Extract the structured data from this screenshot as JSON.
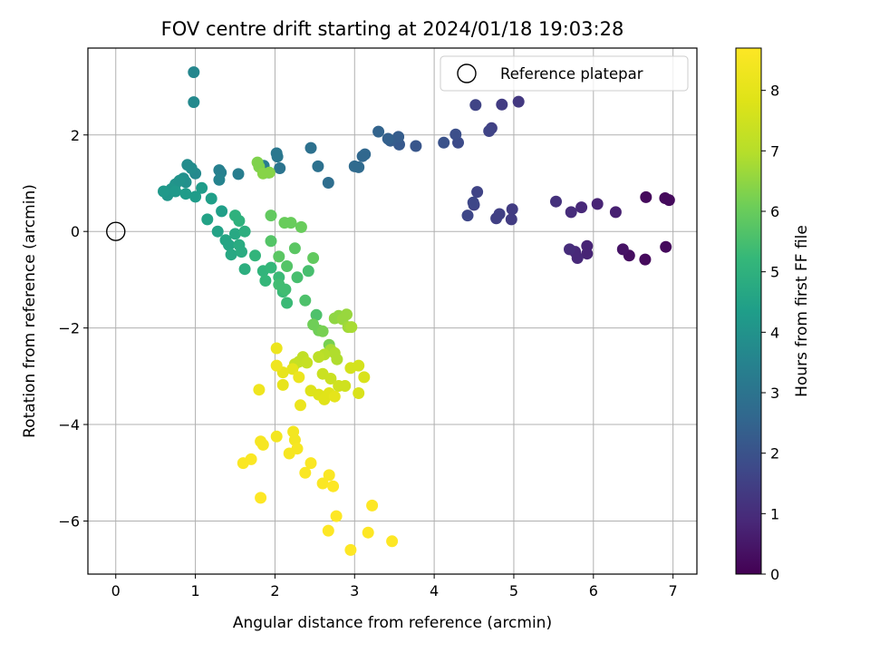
{
  "chart_data": {
    "type": "scatter",
    "title": "FOV centre drift starting at 2024/01/18 19:03:28",
    "xlabel": "Angular distance from reference (arcmin)",
    "ylabel": "Rotation from reference (arcmin)",
    "xlim": [
      -0.35,
      7.3
    ],
    "ylim": [
      -7.1,
      3.8
    ],
    "xticks": [
      0,
      1,
      2,
      3,
      4,
      5,
      6,
      7
    ],
    "yticks": [
      -6,
      -4,
      -2,
      0,
      2
    ],
    "grid": true,
    "legend": {
      "position": "top-right",
      "entries": [
        "Reference platepar"
      ]
    },
    "reference_point": {
      "x": 0,
      "y": 0
    },
    "colormap": "viridis",
    "colorbar": {
      "label": "Hours from first FF file",
      "range": [
        0,
        8.7
      ],
      "ticks": [
        0,
        1,
        2,
        3,
        4,
        5,
        6,
        7,
        8
      ]
    },
    "point_fields": [
      "x",
      "y",
      "hours"
    ],
    "points": [
      [
        6.66,
        0.71,
        0.2
      ],
      [
        6.9,
        0.69,
        0.2
      ],
      [
        6.95,
        0.65,
        0.2
      ],
      [
        6.91,
        -0.32,
        0.2
      ],
      [
        6.65,
        -0.58,
        0.2
      ],
      [
        6.45,
        -0.5,
        0.3
      ],
      [
        6.37,
        -0.37,
        0.4
      ],
      [
        6.28,
        0.4,
        0.7
      ],
      [
        6.05,
        0.57,
        0.8
      ],
      [
        5.92,
        -0.3,
        0.8
      ],
      [
        5.92,
        -0.46,
        0.8
      ],
      [
        5.85,
        0.5,
        0.9
      ],
      [
        5.8,
        -0.55,
        0.9
      ],
      [
        5.77,
        -0.42,
        0.9
      ],
      [
        5.72,
        0.4,
        1.0
      ],
      [
        5.7,
        -0.37,
        1.0
      ],
      [
        5.53,
        0.62,
        1.1
      ],
      [
        5.06,
        2.69,
        1.3
      ],
      [
        4.98,
        0.46,
        1.4
      ],
      [
        4.97,
        0.25,
        1.4
      ],
      [
        4.85,
        2.63,
        1.4
      ],
      [
        4.82,
        0.36,
        1.5
      ],
      [
        4.78,
        0.27,
        1.5
      ],
      [
        4.72,
        2.14,
        1.5
      ],
      [
        4.69,
        2.08,
        1.6
      ],
      [
        4.54,
        0.82,
        1.6
      ],
      [
        4.52,
        2.62,
        1.6
      ],
      [
        4.5,
        0.55,
        1.6
      ],
      [
        4.49,
        0.6,
        1.7
      ],
      [
        4.42,
        0.33,
        1.7
      ],
      [
        4.3,
        1.84,
        1.8
      ],
      [
        4.27,
        2.01,
        1.9
      ],
      [
        4.12,
        1.84,
        2.0
      ],
      [
        3.77,
        1.77,
        2.1
      ],
      [
        3.56,
        1.8,
        2.2
      ],
      [
        3.55,
        1.96,
        2.3
      ],
      [
        3.45,
        1.88,
        2.3
      ],
      [
        3.42,
        1.92,
        2.4
      ],
      [
        3.3,
        2.07,
        2.5
      ],
      [
        3.13,
        1.6,
        2.6
      ],
      [
        3.1,
        1.56,
        2.6
      ],
      [
        3.05,
        1.33,
        2.7
      ],
      [
        3.0,
        1.35,
        2.7
      ],
      [
        2.67,
        1.01,
        2.8
      ],
      [
        2.54,
        1.35,
        2.9
      ],
      [
        2.45,
        1.73,
        2.9
      ],
      [
        2.06,
        1.31,
        3.0
      ],
      [
        2.03,
        1.55,
        3.1
      ],
      [
        2.02,
        1.62,
        3.1
      ],
      [
        1.92,
        1.22,
        3.2
      ],
      [
        1.86,
        1.36,
        3.3
      ],
      [
        1.54,
        1.19,
        3.3
      ],
      [
        1.32,
        1.22,
        3.4
      ],
      [
        1.3,
        1.27,
        3.4
      ],
      [
        1.3,
        1.07,
        3.5
      ],
      [
        0.98,
        3.3,
        3.6
      ],
      [
        0.98,
        2.68,
        3.7
      ],
      [
        1.0,
        1.2,
        3.7
      ],
      [
        0.9,
        1.38,
        3.8
      ],
      [
        0.95,
        1.31,
        3.8
      ],
      [
        0.85,
        1.1,
        3.9
      ],
      [
        0.88,
        1.02,
        3.9
      ],
      [
        0.8,
        1.05,
        4.0
      ],
      [
        0.75,
        0.98,
        4.0
      ],
      [
        0.7,
        0.88,
        4.1
      ],
      [
        0.65,
        0.75,
        4.1
      ],
      [
        0.6,
        0.83,
        4.2
      ],
      [
        0.75,
        0.83,
        4.2
      ],
      [
        0.88,
        0.78,
        4.3
      ],
      [
        1.0,
        0.72,
        4.3
      ],
      [
        1.08,
        0.9,
        4.3
      ],
      [
        1.2,
        0.68,
        4.4
      ],
      [
        1.33,
        0.42,
        4.4
      ],
      [
        1.15,
        0.25,
        4.5
      ],
      [
        1.28,
        0.0,
        4.5
      ],
      [
        1.38,
        -0.18,
        4.6
      ],
      [
        1.42,
        -0.28,
        4.6
      ],
      [
        1.45,
        -0.48,
        4.7
      ],
      [
        1.5,
        -0.05,
        4.7
      ],
      [
        1.55,
        -0.28,
        4.8
      ],
      [
        1.58,
        -0.42,
        4.8
      ],
      [
        1.62,
        0.0,
        4.9
      ],
      [
        1.62,
        -0.78,
        4.9
      ],
      [
        1.5,
        0.33,
        5.0
      ],
      [
        1.55,
        0.22,
        5.0
      ],
      [
        1.75,
        -0.5,
        5.1
      ],
      [
        1.85,
        -0.82,
        5.1
      ],
      [
        1.88,
        -1.02,
        5.2
      ],
      [
        1.95,
        -0.75,
        5.2
      ],
      [
        2.05,
        -0.95,
        5.3
      ],
      [
        2.1,
        -1.25,
        5.3
      ],
      [
        2.15,
        -1.48,
        5.3
      ],
      [
        2.13,
        -1.2,
        5.4
      ],
      [
        2.05,
        -1.1,
        5.4
      ],
      [
        2.28,
        -0.95,
        5.5
      ],
      [
        2.42,
        -0.82,
        5.5
      ],
      [
        2.38,
        -1.43,
        5.6
      ],
      [
        2.52,
        -1.73,
        5.6
      ],
      [
        2.15,
        -0.72,
        5.7
      ],
      [
        1.95,
        -0.2,
        5.7
      ],
      [
        2.05,
        -0.52,
        5.8
      ],
      [
        2.25,
        -0.35,
        5.8
      ],
      [
        2.48,
        -0.55,
        5.9
      ],
      [
        1.95,
        0.33,
        5.9
      ],
      [
        2.12,
        0.18,
        6.0
      ],
      [
        2.2,
        0.18,
        6.0
      ],
      [
        2.33,
        0.09,
        6.0
      ],
      [
        2.48,
        -1.93,
        6.1
      ],
      [
        2.55,
        -2.05,
        6.1
      ],
      [
        2.6,
        -2.07,
        6.2
      ],
      [
        2.68,
        -2.35,
        6.2
      ],
      [
        1.78,
        1.43,
        6.3
      ],
      [
        1.8,
        1.34,
        6.3
      ],
      [
        1.85,
        1.2,
        6.4
      ],
      [
        1.93,
        1.22,
        6.4
      ],
      [
        2.75,
        -1.8,
        6.5
      ],
      [
        2.8,
        -1.75,
        6.5
      ],
      [
        2.85,
        -1.82,
        6.6
      ],
      [
        2.9,
        -1.72,
        6.6
      ],
      [
        2.92,
        -1.98,
        6.7
      ],
      [
        2.96,
        -1.98,
        6.8
      ],
      [
        2.7,
        -2.45,
        6.8
      ],
      [
        2.75,
        -2.52,
        6.9
      ],
      [
        2.78,
        -2.65,
        6.9
      ],
      [
        2.62,
        -2.55,
        7.0
      ],
      [
        2.55,
        -2.6,
        7.1
      ],
      [
        2.35,
        -2.6,
        7.2
      ],
      [
        2.3,
        -2.7,
        7.2
      ],
      [
        2.25,
        -2.75,
        7.3
      ],
      [
        2.4,
        -2.72,
        7.3
      ],
      [
        2.6,
        -2.95,
        7.4
      ],
      [
        2.7,
        -3.05,
        7.4
      ],
      [
        2.8,
        -3.2,
        7.5
      ],
      [
        2.88,
        -3.2,
        7.5
      ],
      [
        2.95,
        -2.83,
        7.6
      ],
      [
        3.05,
        -2.78,
        7.6
      ],
      [
        3.12,
        -3.02,
        7.7
      ],
      [
        3.05,
        -3.35,
        7.7
      ],
      [
        2.45,
        -3.3,
        7.8
      ],
      [
        2.55,
        -3.38,
        7.8
      ],
      [
        2.62,
        -3.48,
        7.9
      ],
      [
        2.68,
        -3.35,
        7.9
      ],
      [
        2.75,
        -3.42,
        8.0
      ],
      [
        2.22,
        -2.85,
        8.0
      ],
      [
        2.1,
        -2.92,
        8.1
      ],
      [
        2.1,
        -3.18,
        8.1
      ],
      [
        2.3,
        -3.02,
        8.2
      ],
      [
        2.32,
        -3.6,
        8.2
      ],
      [
        2.02,
        -2.42,
        8.2
      ],
      [
        2.02,
        -2.78,
        8.3
      ],
      [
        1.8,
        -3.28,
        8.3
      ],
      [
        2.23,
        -4.15,
        8.4
      ],
      [
        2.25,
        -4.32,
        8.4
      ],
      [
        2.02,
        -4.25,
        8.4
      ],
      [
        2.18,
        -4.6,
        8.5
      ],
      [
        2.28,
        -4.5,
        8.5
      ],
      [
        1.82,
        -4.35,
        8.5
      ],
      [
        1.85,
        -4.42,
        8.5
      ],
      [
        1.7,
        -4.72,
        8.6
      ],
      [
        1.6,
        -4.8,
        8.6
      ],
      [
        2.45,
        -4.8,
        8.6
      ],
      [
        2.38,
        -5.0,
        8.6
      ],
      [
        2.6,
        -5.22,
        8.6
      ],
      [
        2.68,
        -5.05,
        8.6
      ],
      [
        2.73,
        -5.28,
        8.7
      ],
      [
        1.82,
        -5.52,
        8.7
      ],
      [
        2.77,
        -5.9,
        8.7
      ],
      [
        3.22,
        -5.68,
        8.7
      ],
      [
        2.67,
        -6.2,
        8.7
      ],
      [
        3.17,
        -6.24,
        8.7
      ],
      [
        2.95,
        -6.6,
        8.7
      ],
      [
        3.47,
        -6.42,
        8.7
      ]
    ]
  }
}
